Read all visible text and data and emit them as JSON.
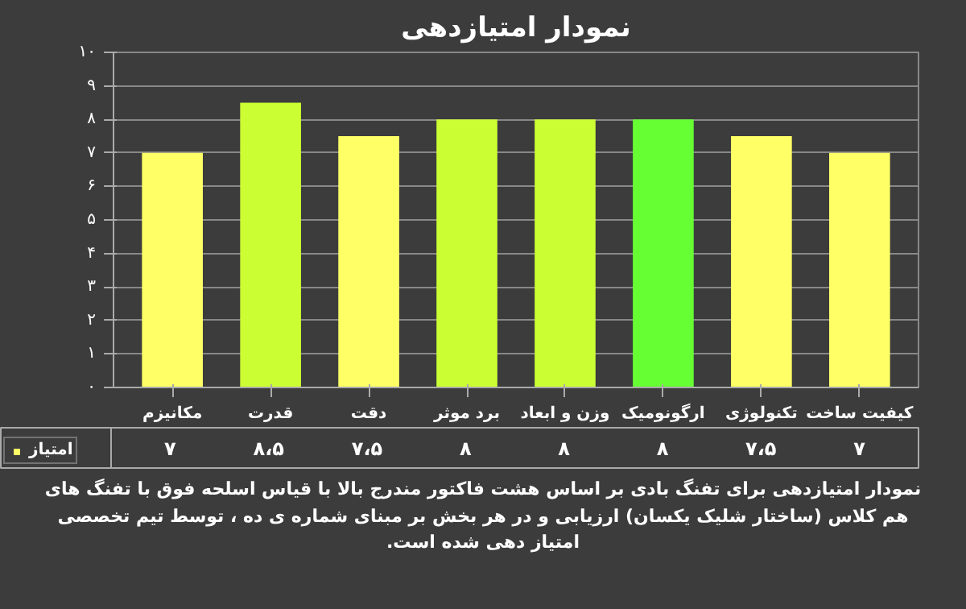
{
  "chart_data": {
    "type": "bar",
    "title": "نمودار امتیازدهی",
    "categories": [
      "مکانیزم",
      "قدرت",
      "دقت",
      "برد موثر",
      "وزن و ابعاد",
      "ارگونومیک",
      "تکنولوژی",
      "کیفیت ساخت"
    ],
    "series": [
      {
        "name": "امتیاز",
        "values": [
          7,
          8.5,
          7.5,
          8,
          8,
          8,
          7.5,
          7
        ]
      }
    ],
    "colors": [
      "#ffff66",
      "#ccff33",
      "#ffff66",
      "#ccff33",
      "#ccff33",
      "#66ff33",
      "#ffff66",
      "#ffff66"
    ],
    "value_labels": [
      "۷",
      "۸،۵",
      "۷،۵",
      "۸",
      "۸",
      "۸",
      "۷،۵",
      "۷"
    ],
    "ylim": [
      0,
      10
    ],
    "yticks": [
      {
        "value": 0,
        "label": "۰"
      },
      {
        "value": 1,
        "label": "۱"
      },
      {
        "value": 2,
        "label": "۲"
      },
      {
        "value": 3,
        "label": "۳"
      },
      {
        "value": 4,
        "label": "۴"
      },
      {
        "value": 5,
        "label": "۵"
      },
      {
        "value": 6,
        "label": "۶"
      },
      {
        "value": 7,
        "label": "۷"
      },
      {
        "value": 8,
        "label": "۸"
      },
      {
        "value": 9,
        "label": "۹"
      },
      {
        "value": 10,
        "label": "۱۰"
      }
    ],
    "grid": "y",
    "legend": "bottom left",
    "annotations": [
      "نمودار امتیازدهی برای تفنگ بادی بر اساس هشت فاکتور مندرج بالا با قیاس اسلحه فوق با تفنگ های هم کلاس (ساختار شلیک یکسان) ارزیابی و در هر بخش بر مبنای شماره ی ده ، توسط تیم تخصصی امتیاز دهی شده است."
    ]
  }
}
